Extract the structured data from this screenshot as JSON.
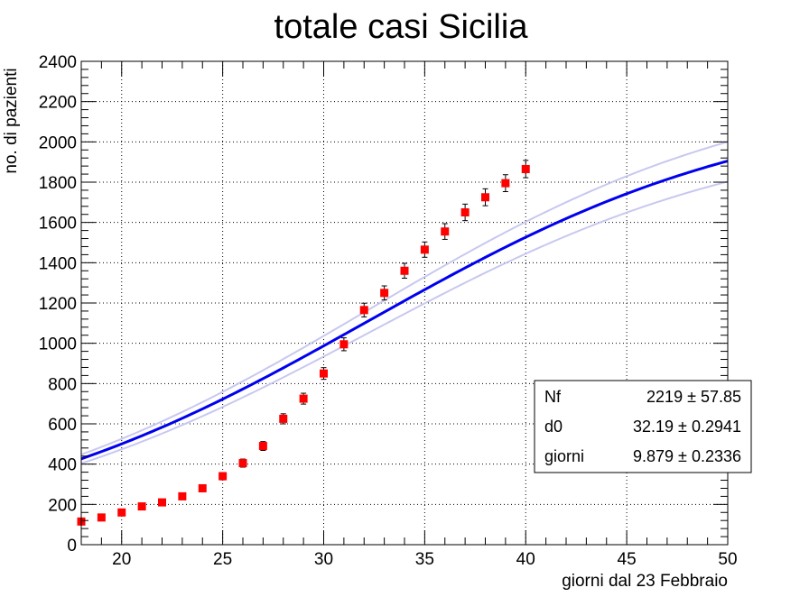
{
  "chart_data": {
    "type": "scatter",
    "title": "totale casi Sicilia",
    "xlabel": "giorni dal 23 Febbraio",
    "ylabel": "no. di pazienti",
    "xlim": [
      18,
      50
    ],
    "ylim": [
      0,
      2400
    ],
    "x_ticks": [
      "20",
      "25",
      "30",
      "35",
      "40",
      "45",
      "50"
    ],
    "y_ticks": [
      "0",
      "200",
      "400",
      "600",
      "800",
      "1000",
      "1200",
      "1400",
      "1600",
      "1800",
      "2000",
      "2200",
      "2400"
    ],
    "grid": true,
    "series": [
      {
        "type": "scatter",
        "marker": "square",
        "color": "#ff0000",
        "x": [
          18,
          19,
          20,
          21,
          22,
          23,
          24,
          25,
          26,
          27,
          28,
          29,
          30,
          31,
          32,
          33,
          34,
          35,
          36,
          37,
          38,
          39,
          40
        ],
        "y": [
          115,
          135,
          160,
          190,
          210,
          240,
          280,
          340,
          405,
          490,
          625,
          725,
          850,
          995,
          1165,
          1250,
          1360,
          1465,
          1555,
          1650,
          1725,
          1795,
          1865
        ],
        "yerr": [
          11,
          12,
          13,
          14,
          15,
          16,
          17,
          18,
          20,
          22,
          25,
          27,
          29,
          32,
          34,
          35,
          37,
          38,
          39,
          41,
          42,
          42,
          43
        ]
      },
      {
        "type": "line",
        "model": "logistic",
        "color": "#0000ee",
        "band_color": "#c8c8f0",
        "Nf": 2219,
        "d0": 32.19,
        "giorni": 9.879,
        "band_Nf": [
          2100,
          2330
        ]
      }
    ],
    "stats_box": {
      "rows": [
        {
          "name": "Nf",
          "value": "2219 ± 57.85"
        },
        {
          "name": "d0",
          "value": "32.19 ± 0.2941"
        },
        {
          "name": "giorni",
          "value": "9.879 ± 0.2336"
        }
      ]
    }
  }
}
